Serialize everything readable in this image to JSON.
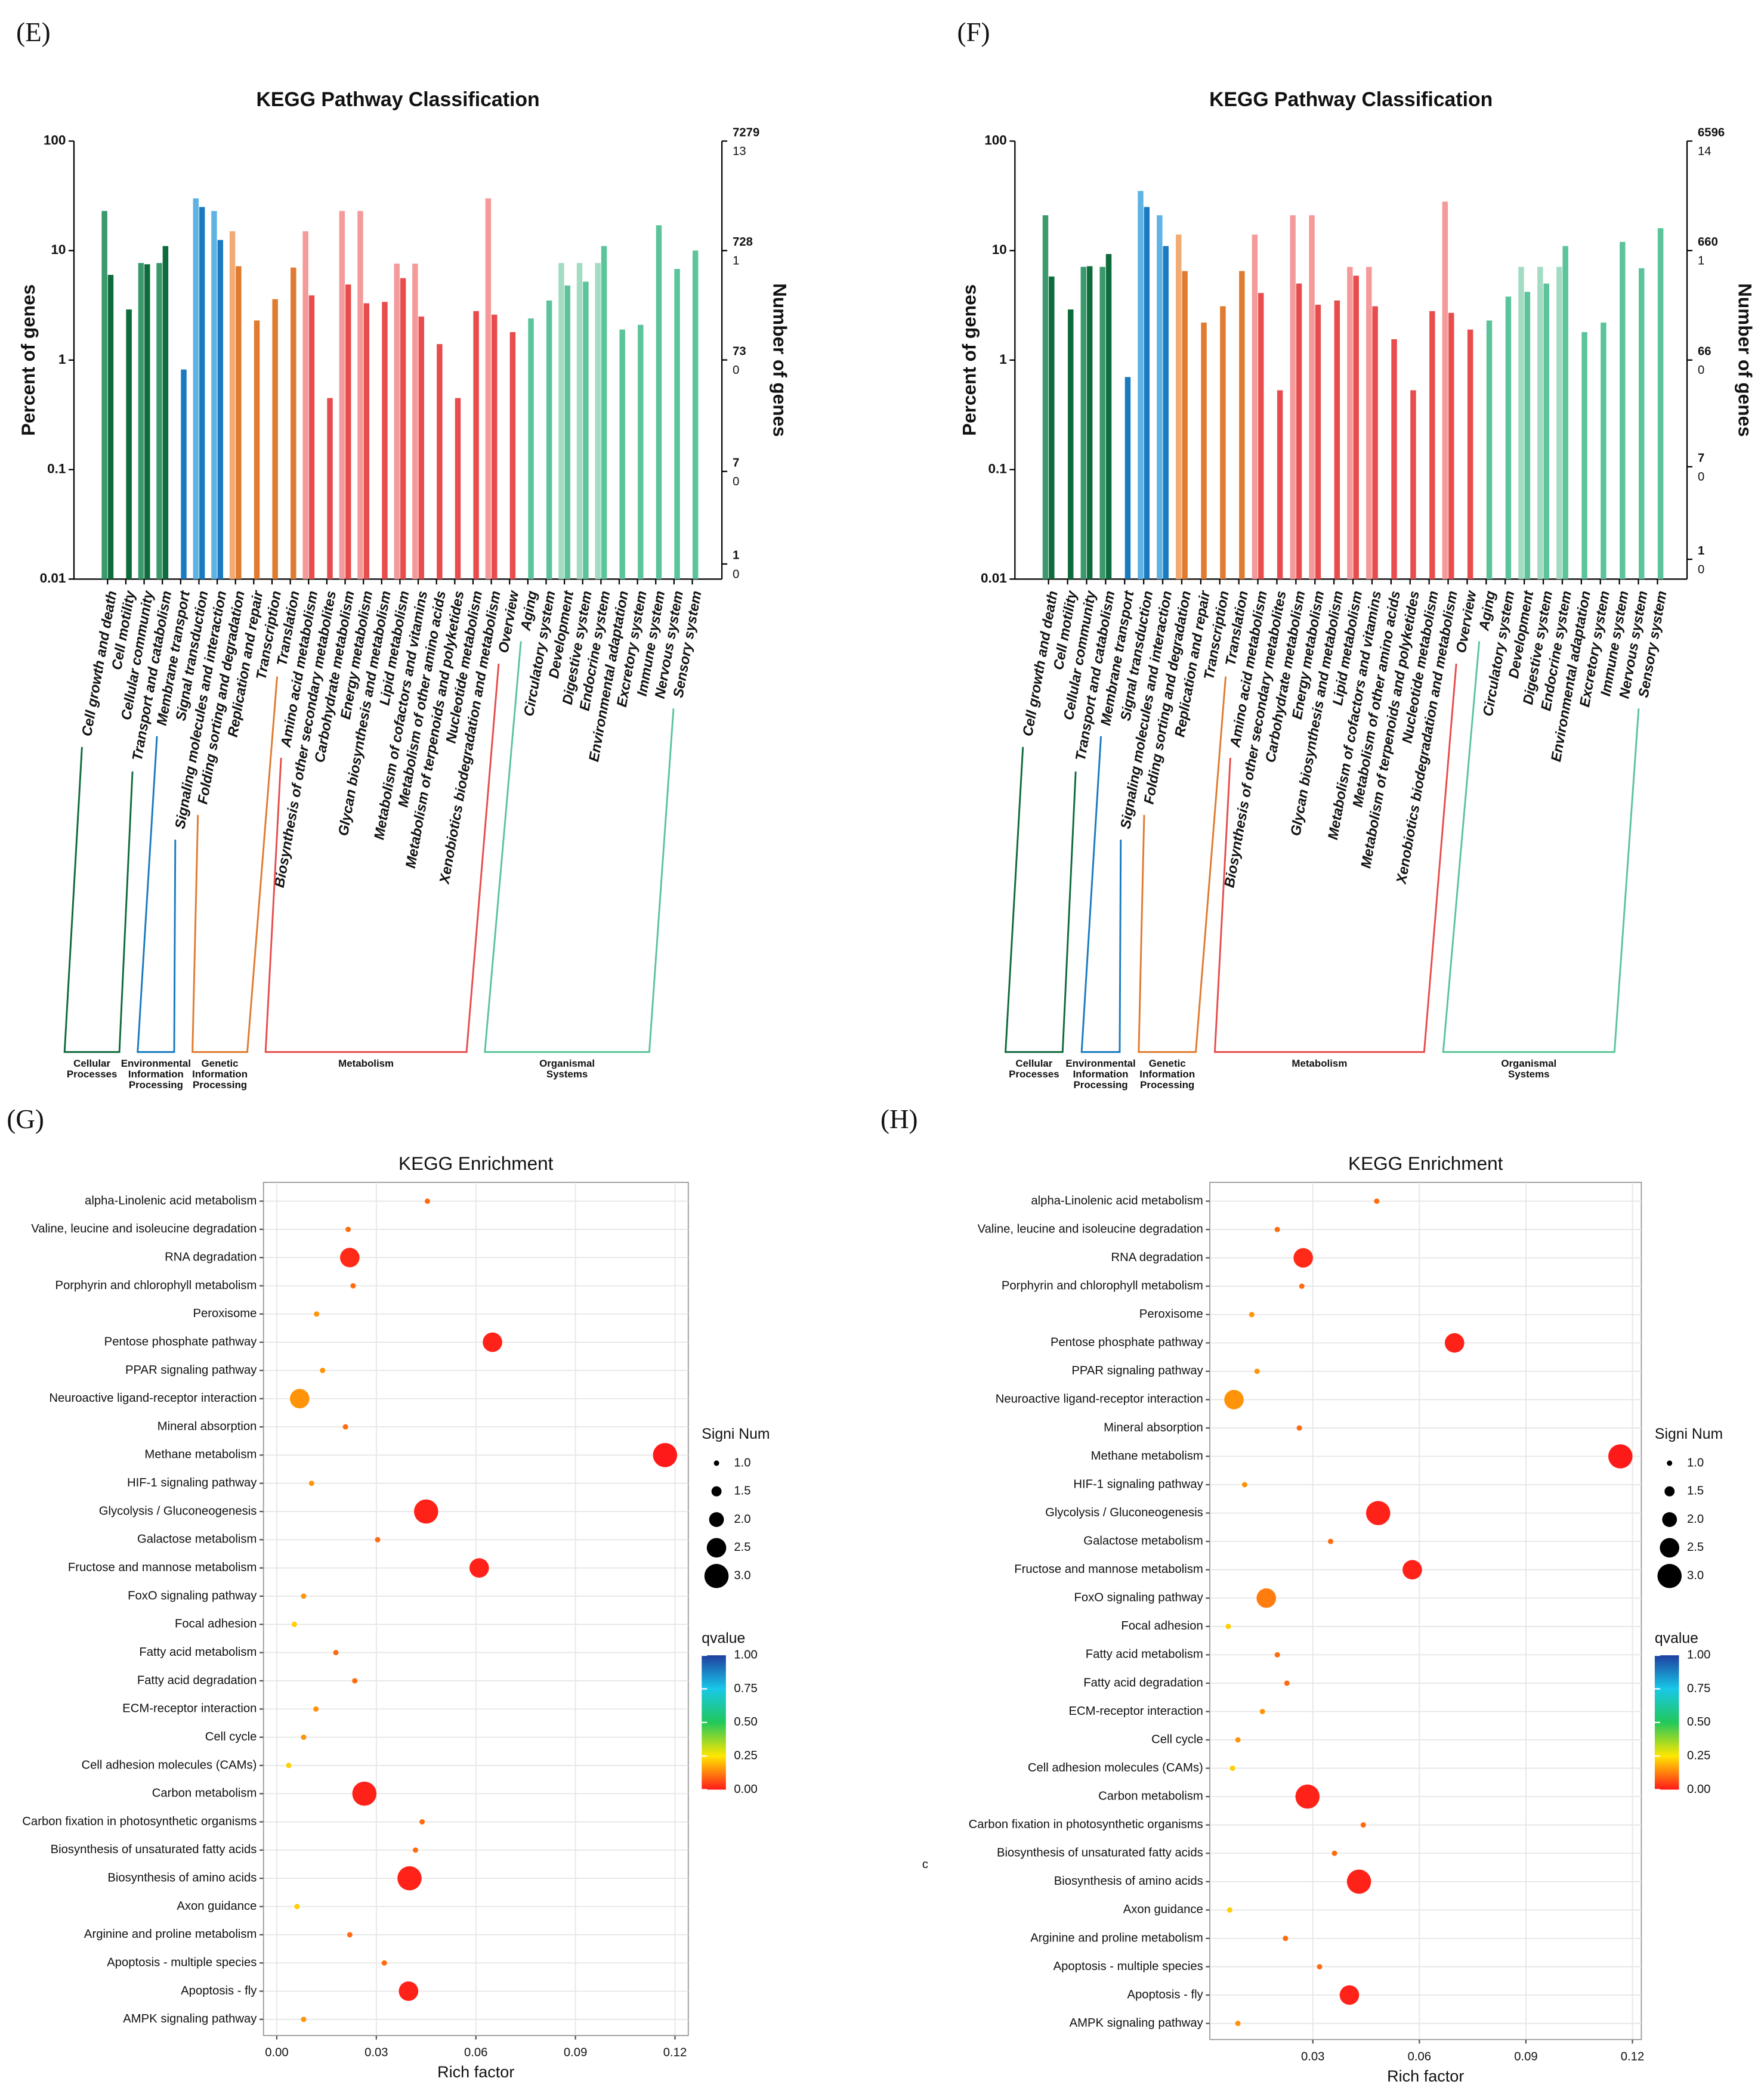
{
  "chart_data": [
    {
      "type": "bar",
      "panel": "(E)",
      "title": "KEGG Pathway Classification",
      "ylabel": "Percent of genes",
      "y2label": "Number of genes",
      "log_y": true,
      "ylim": [
        0.01,
        100
      ],
      "yticks": [
        100,
        10,
        1,
        0.1,
        0.01
      ],
      "y2lim": [
        0.7279,
        7279
      ],
      "y2ticks": [
        7279,
        728,
        73,
        7,
        1
      ],
      "y3ticks": [
        13,
        1,
        0,
        0,
        0
      ],
      "groups": [
        {
          "label": [
            "Cellular",
            "Processes"
          ],
          "categories": [
            "Cell growth and death",
            "Cell motility",
            "Cellular community",
            "Transport and catabolism"
          ],
          "series": [
            {
              "color": "#3a9a6c",
              "values": [
                23,
                null,
                7.7,
                7.7
              ]
            },
            {
              "color": "#0e6b3c",
              "values": [
                6,
                2.9,
                7.5,
                11
              ]
            }
          ]
        },
        {
          "label": [
            "Environmental",
            "Information",
            "Processing"
          ],
          "categories": [
            "Membrane transport",
            "Signal transduction",
            "Signaling molecules and interaction"
          ],
          "series": [
            {
              "color": "#5fb3e3",
              "values": [
                null,
                30,
                23
              ]
            },
            {
              "color": "#1a7ac0",
              "values": [
                0.82,
                25,
                12.5
              ]
            }
          ]
        },
        {
          "label": [
            "Genetic",
            "Information",
            "Processing"
          ],
          "categories": [
            "Folding sorting and degradation",
            "Replication and repair",
            "Transcription",
            "Translation"
          ],
          "series": [
            {
              "color": "#f2ab74",
              "values": [
                15,
                null,
                null,
                null
              ]
            },
            {
              "color": "#e07b30",
              "values": [
                7.2,
                2.3,
                3.6,
                7
              ]
            }
          ]
        },
        {
          "label": [
            "Metabolism"
          ],
          "categories": [
            "Amino acid metabolism",
            "Biosynthesis of other secondary metabolites",
            "Carbohydrate metabolism",
            "Energy metabolism",
            "Glycan biosynthesis and metabolism",
            "Lipid metabolism",
            "Metabolism of cofactors and vitamins",
            "Metabolism of other amino acids",
            "Metabolism of terpenoids and polyketides",
            "Nucleotide metabolism",
            "Xenobiotics biodegradation and metabolism",
            "Overview"
          ],
          "series": [
            {
              "color": "#f59a9a",
              "values": [
                15,
                null,
                23,
                23,
                null,
                7.6,
                7.6,
                null,
                null,
                null,
                30,
                null
              ]
            },
            {
              "color": "#e84c4c",
              "values": [
                3.9,
                0.45,
                4.9,
                3.3,
                3.4,
                5.6,
                2.5,
                1.4,
                0.45,
                2.8,
                2.6,
                1.8
              ]
            }
          ]
        },
        {
          "label": [
            "Organismal",
            "Systems"
          ],
          "categories": [
            "Aging",
            "Circulatory system",
            "Development",
            "Digestive system",
            "Endocrine system",
            "Environmental adaptation",
            "Excretory system",
            "Immune system",
            "Nervous system",
            "Sensory system"
          ],
          "series": [
            {
              "color": "#a3dcc3",
              "values": [
                null,
                null,
                7.7,
                7.7,
                7.7,
                null,
                null,
                null,
                null,
                null
              ]
            },
            {
              "color": "#5cc49a",
              "values": [
                2.4,
                3.5,
                4.8,
                5.2,
                11,
                1.9,
                2.1,
                17,
                6.8,
                10
              ]
            }
          ]
        }
      ]
    },
    {
      "type": "bar",
      "panel": "(F)",
      "title": "KEGG Pathway Classification",
      "ylabel": "Percent of genes",
      "y2label": "Number of genes",
      "log_y": true,
      "ylim": [
        0.01,
        100
      ],
      "yticks": [
        100,
        10,
        1,
        0.1,
        0.01
      ],
      "y2lim": [
        0.6596,
        6596
      ],
      "y2ticks": [
        6596,
        660,
        66,
        7,
        1
      ],
      "y3ticks": [
        14,
        1,
        0,
        0,
        0
      ],
      "groups": [
        {
          "label": [
            "Cellular",
            "Processes"
          ],
          "categories": [
            "Cell growth and death",
            "Cell motility",
            "Cellular community",
            "Transport and catabolism"
          ],
          "series": [
            {
              "color": "#3a9a6c",
              "values": [
                21,
                null,
                7.1,
                7.1
              ]
            },
            {
              "color": "#0e6b3c",
              "values": [
                5.8,
                2.9,
                7.2,
                9.3
              ]
            }
          ]
        },
        {
          "label": [
            "Environmental",
            "Information",
            "Processing"
          ],
          "categories": [
            "Membrane transport",
            "Signal transduction",
            "Signaling molecules and interaction"
          ],
          "series": [
            {
              "color": "#5fb3e3",
              "values": [
                null,
                35,
                21
              ]
            },
            {
              "color": "#1a7ac0",
              "values": [
                0.7,
                25,
                11
              ]
            }
          ]
        },
        {
          "label": [
            "Genetic",
            "Information",
            "Processing"
          ],
          "categories": [
            "Folding sorting and degradation",
            "Replication and repair",
            "Transcription",
            "Translation"
          ],
          "series": [
            {
              "color": "#f2ab74",
              "values": [
                14,
                null,
                null,
                null
              ]
            },
            {
              "color": "#e07b30",
              "values": [
                6.5,
                2.2,
                3.1,
                6.5
              ]
            }
          ]
        },
        {
          "label": [
            "Metabolism"
          ],
          "categories": [
            "Amino acid metabolism",
            "Biosynthesis of other secondary metabolites",
            "Carbohydrate metabolism",
            "Energy metabolism",
            "Glycan biosynthesis and metabolism",
            "Lipid metabolism",
            "Metabolism of cofactors and vitamins",
            "Metabolism of other amino acids",
            "Metabolism of terpenoids and polyketides",
            "Nucleotide metabolism",
            "Xenobiotics biodegradation and metabolism",
            "Overview"
          ],
          "series": [
            {
              "color": "#f59a9a",
              "values": [
                14,
                null,
                21,
                21,
                null,
                7.1,
                7.1,
                null,
                null,
                null,
                28,
                null
              ]
            },
            {
              "color": "#e84c4c",
              "values": [
                4.1,
                0.53,
                5,
                3.2,
                3.5,
                5.9,
                3.1,
                1.55,
                0.53,
                2.8,
                2.7,
                1.9
              ]
            }
          ]
        },
        {
          "label": [
            "Organismal",
            "Systems"
          ],
          "categories": [
            "Aging",
            "Circulatory system",
            "Development",
            "Digestive system",
            "Endocrine system",
            "Environmental adaptation",
            "Excretory system",
            "Immune system",
            "Nervous system",
            "Sensory system"
          ],
          "series": [
            {
              "color": "#a3dcc3",
              "values": [
                null,
                null,
                7.1,
                7.1,
                7.1,
                null,
                null,
                null,
                null,
                null
              ]
            },
            {
              "color": "#5cc49a",
              "values": [
                2.3,
                3.8,
                4.2,
                5,
                11,
                1.8,
                2.2,
                12,
                6.9,
                16
              ]
            }
          ]
        }
      ]
    },
    {
      "type": "scatter",
      "panel": "(G)",
      "title": "KEGG Enrichment",
      "xlabel": "Rich factor",
      "categories": [
        "alpha-Linolenic acid metabolism",
        "Valine, leucine and isoleucine degradation",
        "RNA degradation",
        "Porphyrin and chlorophyll metabolism",
        "Peroxisome",
        "Pentose phosphate pathway",
        "PPAR signaling pathway",
        "Neuroactive ligand-receptor interaction",
        "Mineral absorption",
        "Methane metabolism",
        "HIF-1 signaling pathway",
        "Glycolysis / Gluconeogenesis",
        "Galactose metabolism",
        "Fructose and mannose metabolism",
        "FoxO signaling pathway",
        "Focal adhesion",
        "Fatty acid metabolism",
        "Fatty acid degradation",
        "ECM-receptor interaction",
        "Cell cycle",
        "Cell adhesion molecules (CAMs)",
        "Carbon metabolism",
        "Carbon fixation in photosynthetic organisms",
        "Biosynthesis of unsaturated fatty acids",
        "Biosynthesis of amino acids",
        "Axon guidance",
        "Arginine and proline metabolism",
        "Apoptosis - multiple species",
        "Apoptosis - fly",
        "AMPK signaling pathway"
      ],
      "x": [
        0.0454,
        0.0215,
        0.022,
        0.023,
        0.012,
        0.065,
        0.0138,
        0.0069,
        0.0207,
        0.117,
        0.0105,
        0.045,
        0.0304,
        0.061,
        0.0081,
        0.0053,
        0.0178,
        0.0235,
        0.0118,
        0.0081,
        0.0036,
        0.0264,
        0.0438,
        0.0418,
        0.04,
        0.0061,
        0.022,
        0.0324,
        0.0397,
        0.0081
      ],
      "size": [
        1,
        1,
        2.5,
        1,
        1,
        2.5,
        1,
        2.5,
        1,
        3,
        1,
        3,
        1,
        2.5,
        1,
        1,
        1,
        1,
        1,
        1,
        1,
        3,
        1,
        1,
        3,
        1,
        1,
        1,
        2.5,
        1
      ],
      "qvalue": [
        0.1,
        0.1,
        0.02,
        0.1,
        0.15,
        0.01,
        0.15,
        0.15,
        0.1,
        0,
        0.15,
        0.01,
        0.1,
        0.01,
        0.15,
        0.22,
        0.1,
        0.1,
        0.15,
        0.15,
        0.22,
        0.01,
        0.1,
        0.1,
        0.01,
        0.22,
        0.1,
        0.1,
        0.01,
        0.15
      ],
      "xlim": [
        -0.004,
        0.124
      ],
      "xticks": [
        {
          "value": 0,
          "label": "0.00"
        },
        0.03,
        0.06,
        0.09,
        0.12
      ],
      "size_legend": {
        "title": "Signi Num",
        "values": [
          {
            "value": 1,
            "label": "1.0"
          },
          1.5,
          {
            "value": 2,
            "label": "2.0"
          },
          2.5,
          {
            "value": 3,
            "label": "3.0"
          }
        ]
      },
      "color_legend": {
        "title": "qvalue",
        "lim": [
          0,
          1
        ],
        "ticks": [
          {
            "value": 1,
            "label": "1.00"
          },
          0.75,
          {
            "value": 0.5,
            "label": "0.50"
          },
          0.25,
          {
            "value": 0,
            "label": "0.00"
          }
        ],
        "colorscale": [
          [
            0,
            "#ff1a1a"
          ],
          [
            0.25,
            "#ffe600"
          ],
          [
            0.5,
            "#22c85a"
          ],
          [
            0.75,
            "#18c8e8"
          ],
          [
            1,
            "#1f3f9f"
          ]
        ]
      }
    },
    {
      "type": "scatter",
      "panel": "(H)",
      "title": "KEGG Enrichment",
      "xlabel": "Rich factor",
      "annotation": "c",
      "categories": [
        "alpha-Linolenic acid metabolism",
        "Valine, leucine and isoleucine degradation",
        "RNA degradation",
        "Porphyrin and chlorophyll metabolism",
        "Peroxisome",
        "Pentose phosphate pathway",
        "PPAR signaling pathway",
        "Neuroactive ligand-receptor interaction",
        "Mineral absorption",
        "Methane metabolism",
        "HIF-1 signaling pathway",
        "Glycolysis / Gluconeogenesis",
        "Galactose metabolism",
        "Fructose and mannose metabolism",
        "FoxO signaling pathway",
        "Focal adhesion",
        "Fatty acid metabolism",
        "Fatty acid degradation",
        "ECM-receptor interaction",
        "Cell cycle",
        "Cell adhesion molecules (CAMs)",
        "Carbon metabolism",
        "Carbon fixation in photosynthetic organisms",
        "Biosynthesis of unsaturated fatty acids",
        "Biosynthesis of amino acids",
        "Axon guidance",
        "Arginine and proline metabolism",
        "Apoptosis - multiple species",
        "Apoptosis - fly",
        "AMPK signaling pathway"
      ],
      "x": [
        0.048,
        0.02,
        0.0273,
        0.0269,
        0.0128,
        0.0699,
        0.0143,
        0.0078,
        0.0262,
        0.1166,
        0.0108,
        0.0484,
        0.035,
        0.058,
        0.0169,
        0.0062,
        0.02,
        0.0227,
        0.0158,
        0.0089,
        0.0074,
        0.0285,
        0.0442,
        0.0361,
        0.043,
        0.0066,
        0.0223,
        0.0319,
        0.0403,
        0.0089
      ],
      "size": [
        1,
        1,
        2.5,
        1,
        1,
        2.5,
        1,
        2.5,
        1,
        3,
        1,
        3,
        1,
        2.5,
        2.5,
        1,
        1,
        1,
        1,
        1,
        1,
        3,
        1,
        1,
        3,
        1,
        1,
        1,
        2.5,
        1
      ],
      "qvalue": [
        0.1,
        0.1,
        0.02,
        0.1,
        0.15,
        0.01,
        0.15,
        0.15,
        0.1,
        0,
        0.15,
        0.01,
        0.1,
        0.01,
        0.12,
        0.22,
        0.1,
        0.1,
        0.15,
        0.15,
        0.22,
        0.01,
        0.1,
        0.1,
        0.01,
        0.22,
        0.1,
        0.1,
        0.01,
        0.15
      ],
      "xlim": [
        0.001,
        0.1225
      ],
      "xticks": [
        0.03,
        0.06,
        0.09,
        0.12
      ],
      "size_legend": {
        "title": "Signi Num",
        "values": [
          {
            "value": 1,
            "label": "1.0"
          },
          1.5,
          {
            "value": 2,
            "label": "2.0"
          },
          2.5,
          {
            "value": 3,
            "label": "3.0"
          }
        ]
      },
      "color_legend": {
        "title": "qvalue",
        "lim": [
          0,
          1
        ],
        "ticks": [
          {
            "value": 1,
            "label": "1.00"
          },
          0.75,
          {
            "value": 0.5,
            "label": "0.50"
          },
          0.25,
          {
            "value": 0,
            "label": "0.00"
          }
        ],
        "colorscale": [
          [
            0,
            "#ff1a1a"
          ],
          [
            0.25,
            "#ffe600"
          ],
          [
            0.5,
            "#22c85a"
          ],
          [
            0.75,
            "#18c8e8"
          ],
          [
            1,
            "#1f3f9f"
          ]
        ]
      }
    }
  ]
}
